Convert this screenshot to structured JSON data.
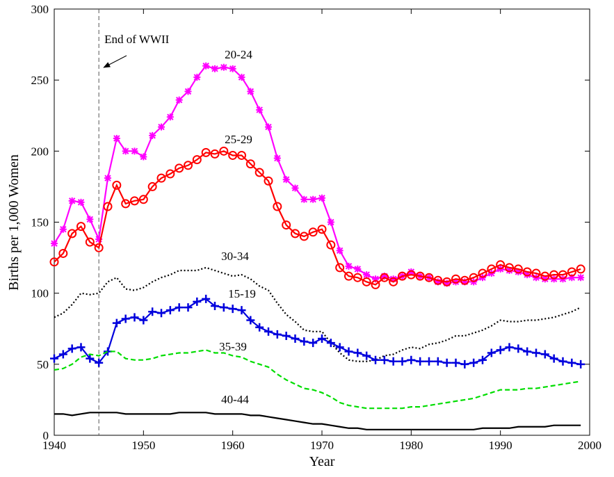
{
  "chart_data": {
    "type": "line",
    "x_label": "Year",
    "y_label": "Births per 1,000 Women",
    "x": [
      1940,
      1941,
      1942,
      1943,
      1944,
      1945,
      1946,
      1947,
      1948,
      1949,
      1950,
      1951,
      1952,
      1953,
      1954,
      1955,
      1956,
      1957,
      1958,
      1959,
      1960,
      1961,
      1962,
      1963,
      1964,
      1965,
      1966,
      1967,
      1968,
      1969,
      1970,
      1971,
      1972,
      1973,
      1974,
      1975,
      1976,
      1977,
      1978,
      1979,
      1980,
      1981,
      1982,
      1983,
      1984,
      1985,
      1986,
      1987,
      1988,
      1989,
      1990,
      1991,
      1992,
      1993,
      1994,
      1995,
      1996,
      1997,
      1998,
      1999
    ],
    "xlim": [
      1940,
      2000
    ],
    "xticks": [
      1940,
      1950,
      1960,
      1970,
      1980,
      1990,
      2000
    ],
    "ylim": [
      0,
      300
    ],
    "yticks": [
      0,
      50,
      100,
      150,
      200,
      250,
      300
    ],
    "annotation": {
      "text": "End of WWII",
      "x": 1945
    },
    "series": [
      {
        "name": "20-24",
        "color": "#ff00ff",
        "marker": "asterisk",
        "dash": "solid",
        "values": [
          135,
          145,
          165,
          164,
          152,
          138,
          181,
          209,
          200,
          200,
          196,
          211,
          217,
          224,
          236,
          242,
          252,
          260,
          258,
          259,
          258,
          252,
          242,
          229,
          217,
          195,
          180,
          174,
          166,
          166,
          167,
          150,
          130,
          119,
          117,
          113,
          110,
          112,
          110,
          112,
          115,
          112,
          111,
          108,
          107,
          108,
          108,
          108,
          111,
          114,
          117,
          116,
          115,
          113,
          111,
          110,
          110,
          110,
          111,
          111
        ]
      },
      {
        "name": "25-29",
        "color": "#ff0000",
        "marker": "circle",
        "dash": "solid",
        "values": [
          122,
          128,
          142,
          147,
          136,
          132,
          161,
          176,
          163,
          165,
          166,
          175,
          181,
          184,
          188,
          190,
          194,
          199,
          198,
          200,
          197,
          197,
          191,
          185,
          179,
          161,
          148,
          142,
          140,
          143,
          145,
          134,
          118,
          112,
          111,
          108,
          106,
          111,
          108,
          112,
          113,
          112,
          111,
          109,
          108,
          110,
          109,
          111,
          114,
          117,
          120,
          118,
          117,
          115,
          114,
          112,
          113,
          113,
          115,
          117
        ]
      },
      {
        "name": "30-34",
        "color": "#000000",
        "marker": "none",
        "dash": "dotted",
        "values": [
          83,
          86,
          92,
          100,
          99,
          100,
          108,
          111,
          103,
          102,
          104,
          108,
          111,
          113,
          116,
          116,
          116,
          118,
          116,
          114,
          112,
          113,
          110,
          105,
          102,
          93,
          85,
          80,
          74,
          73,
          73,
          65,
          58,
          53,
          52,
          52,
          53,
          56,
          57,
          60,
          62,
          61,
          64,
          65,
          67,
          70,
          70,
          72,
          74,
          77,
          81,
          80,
          80,
          81,
          81,
          82,
          83,
          85,
          87,
          90
        ]
      },
      {
        "name": "15-19",
        "color": "#0000dd",
        "marker": "plus",
        "dash": "solid",
        "values": [
          54,
          57,
          61,
          62,
          54,
          51,
          59,
          79,
          82,
          83,
          81,
          87,
          86,
          88,
          90,
          90,
          94,
          96,
          91,
          90,
          89,
          88,
          81,
          76,
          73,
          71,
          70,
          68,
          66,
          65,
          68,
          65,
          62,
          59,
          58,
          56,
          53,
          53,
          52,
          52,
          53,
          52,
          52,
          52,
          51,
          51,
          50,
          51,
          53,
          58,
          60,
          62,
          61,
          59,
          58,
          57,
          54,
          52,
          51,
          50
        ]
      },
      {
        "name": "35-39",
        "color": "#00dd00",
        "marker": "none",
        "dash": "dashed",
        "values": [
          46,
          47,
          50,
          55,
          57,
          56,
          59,
          59,
          54,
          53,
          53,
          54,
          56,
          57,
          58,
          58,
          59,
          60,
          58,
          58,
          56,
          55,
          52,
          50,
          48,
          43,
          39,
          36,
          33,
          32,
          30,
          27,
          23,
          21,
          20,
          19,
          19,
          19,
          19,
          19,
          20,
          20,
          21,
          22,
          23,
          24,
          25,
          26,
          28,
          30,
          32,
          32,
          32,
          33,
          33,
          34,
          35,
          36,
          37,
          38
        ]
      },
      {
        "name": "40-44",
        "color": "#000000",
        "marker": "none",
        "dash": "solid",
        "values": [
          15,
          15,
          14,
          15,
          16,
          16,
          16,
          16,
          15,
          15,
          15,
          15,
          15,
          15,
          16,
          16,
          16,
          16,
          15,
          15,
          15,
          15,
          14,
          14,
          13,
          12,
          11,
          10,
          9,
          8,
          8,
          7,
          6,
          5,
          5,
          4,
          4,
          4,
          4,
          4,
          4,
          4,
          4,
          4,
          4,
          4,
          4,
          4,
          5,
          5,
          5,
          5,
          6,
          6,
          6,
          6,
          7,
          7,
          7,
          7
        ]
      }
    ]
  }
}
